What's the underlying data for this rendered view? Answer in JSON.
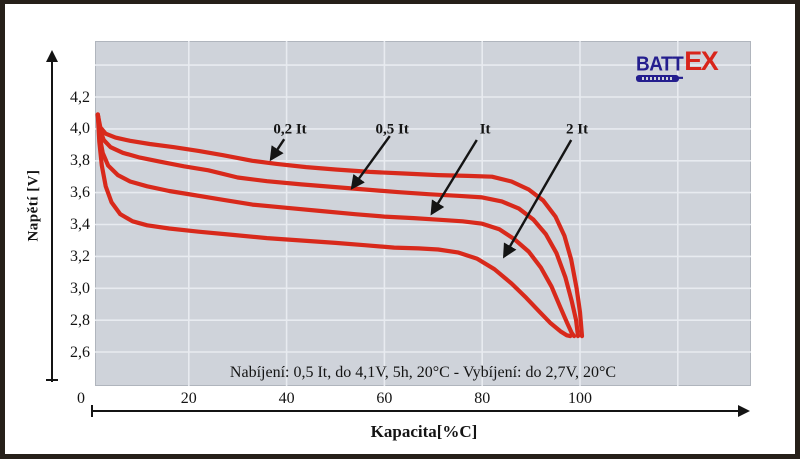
{
  "logo": {
    "part1": "BATT",
    "part2": "EX",
    "batt_color": "#241e8e",
    "ex_color": "#d8251b"
  },
  "annotation_text": "Nabíjení: 0,5 It, do 4,1V, 5h, 20°C - Vybíjení: do 2,7V, 20°C",
  "axes": {
    "y_title": "Napětí [V]",
    "x_title": "Kapacita[%C]",
    "y_ticks": [
      {
        "value": 4.2,
        "label": "4,2"
      },
      {
        "value": 4.0,
        "label": "4,0"
      },
      {
        "value": 3.8,
        "label": "3,8"
      },
      {
        "value": 3.6,
        "label": "3,6"
      },
      {
        "value": 3.4,
        "label": "3,4"
      },
      {
        "value": 3.2,
        "label": "3,2"
      },
      {
        "value": 3.0,
        "label": "3,0"
      },
      {
        "value": 2.8,
        "label": "2,8"
      },
      {
        "value": 2.6,
        "label": "2,6"
      }
    ],
    "x_ticks": [
      {
        "value": 0,
        "label": "0"
      },
      {
        "value": 20,
        "label": "20"
      },
      {
        "value": 40,
        "label": "40"
      },
      {
        "value": 60,
        "label": "60"
      },
      {
        "value": 80,
        "label": "80"
      },
      {
        "value": 100,
        "label": "100"
      }
    ]
  },
  "chart_data": {
    "type": "line",
    "title": "",
    "xlabel": "Kapacita[%C]",
    "ylabel": "Napětí [V]",
    "xlim": [
      0,
      134
    ],
    "ylim": [
      2.39,
      4.55
    ],
    "grid": true,
    "background": "#cfd3da",
    "gridline_color": "#e8ebf0",
    "curve_color": "#d8291b",
    "axis_color": "#141414",
    "x_gridlines": [
      20,
      40,
      60,
      80,
      100,
      120
    ],
    "y_gridlines": [
      4.4,
      4.2,
      4.0,
      3.8,
      3.6,
      3.4,
      3.2,
      3.0,
      2.8,
      2.6
    ],
    "series": [
      {
        "name": "0,2 It",
        "points": [
          [
            1.4,
            4.09
          ],
          [
            1.9,
            4.01
          ],
          [
            3,
            3.97
          ],
          [
            5,
            3.945
          ],
          [
            8,
            3.925
          ],
          [
            12,
            3.905
          ],
          [
            17,
            3.885
          ],
          [
            22,
            3.862
          ],
          [
            27,
            3.835
          ],
          [
            33,
            3.8
          ],
          [
            38,
            3.78
          ],
          [
            44,
            3.76
          ],
          [
            50,
            3.745
          ],
          [
            57,
            3.73
          ],
          [
            64,
            3.72
          ],
          [
            71,
            3.71
          ],
          [
            77,
            3.705
          ],
          [
            82,
            3.7
          ],
          [
            86,
            3.67
          ],
          [
            89.5,
            3.62
          ],
          [
            92.5,
            3.55
          ],
          [
            95,
            3.45
          ],
          [
            96.8,
            3.33
          ],
          [
            98.2,
            3.18
          ],
          [
            99.3,
            3.0
          ],
          [
            100,
            2.85
          ],
          [
            100.4,
            2.7
          ]
        ]
      },
      {
        "name": "0,5 It",
        "points": [
          [
            1.4,
            4.09
          ],
          [
            1.9,
            3.99
          ],
          [
            2.6,
            3.93
          ],
          [
            4,
            3.885
          ],
          [
            6.5,
            3.85
          ],
          [
            10,
            3.82
          ],
          [
            14,
            3.795
          ],
          [
            19,
            3.765
          ],
          [
            24,
            3.74
          ],
          [
            30,
            3.695
          ],
          [
            36,
            3.672
          ],
          [
            43,
            3.652
          ],
          [
            50,
            3.635
          ],
          [
            57,
            3.617
          ],
          [
            63,
            3.603
          ],
          [
            69,
            3.59
          ],
          [
            75,
            3.58
          ],
          [
            80,
            3.57
          ],
          [
            84,
            3.545
          ],
          [
            87.5,
            3.5
          ],
          [
            90.5,
            3.43
          ],
          [
            93,
            3.34
          ],
          [
            95.2,
            3.22
          ],
          [
            97,
            3.07
          ],
          [
            98.3,
            2.92
          ],
          [
            99.2,
            2.8
          ],
          [
            99.6,
            2.7
          ]
        ]
      },
      {
        "name": "It",
        "points": [
          [
            1.4,
            4.09
          ],
          [
            1.8,
            3.95
          ],
          [
            2.4,
            3.85
          ],
          [
            3.5,
            3.77
          ],
          [
            5.5,
            3.71
          ],
          [
            8,
            3.67
          ],
          [
            11.5,
            3.64
          ],
          [
            16,
            3.61
          ],
          [
            21,
            3.585
          ],
          [
            27,
            3.555
          ],
          [
            33,
            3.525
          ],
          [
            40,
            3.505
          ],
          [
            47,
            3.485
          ],
          [
            54,
            3.465
          ],
          [
            60,
            3.45
          ],
          [
            66,
            3.44
          ],
          [
            71,
            3.43
          ],
          [
            76,
            3.42
          ],
          [
            80,
            3.405
          ],
          [
            83.5,
            3.37
          ],
          [
            86.5,
            3.31
          ],
          [
            89.5,
            3.23
          ],
          [
            92,
            3.13
          ],
          [
            94.2,
            3.01
          ],
          [
            96,
            2.88
          ],
          [
            97.4,
            2.78
          ],
          [
            98.3,
            2.72
          ],
          [
            98.8,
            2.7
          ]
        ]
      },
      {
        "name": "2 It",
        "points": [
          [
            1.4,
            4.09
          ],
          [
            1.7,
            3.92
          ],
          [
            2.2,
            3.77
          ],
          [
            3,
            3.64
          ],
          [
            4.2,
            3.54
          ],
          [
            6,
            3.465
          ],
          [
            8.5,
            3.42
          ],
          [
            11.5,
            3.395
          ],
          [
            16,
            3.375
          ],
          [
            22,
            3.355
          ],
          [
            29,
            3.335
          ],
          [
            36,
            3.315
          ],
          [
            43,
            3.3
          ],
          [
            50,
            3.285
          ],
          [
            56,
            3.27
          ],
          [
            62,
            3.255
          ],
          [
            67,
            3.25
          ],
          [
            71,
            3.243
          ],
          [
            75,
            3.225
          ],
          [
            79,
            3.185
          ],
          [
            82.5,
            3.12
          ],
          [
            86,
            3.03
          ],
          [
            89,
            2.94
          ],
          [
            91.8,
            2.85
          ],
          [
            94,
            2.78
          ],
          [
            96,
            2.73
          ],
          [
            97.3,
            2.705
          ],
          [
            98,
            2.7
          ]
        ]
      }
    ],
    "annotations": [
      {
        "label": "0,2 It",
        "label_at": [
          40.7,
          3.99
        ],
        "arrow_from": [
          39.5,
          3.935
        ],
        "arrow_to": [
          36.8,
          3.81
        ]
      },
      {
        "label": "0,5 It",
        "label_at": [
          61.6,
          3.99
        ],
        "arrow_from": [
          61.1,
          3.955
        ],
        "arrow_to": [
          53.4,
          3.63
        ]
      },
      {
        "label": "It",
        "label_at": [
          80.6,
          3.99
        ],
        "arrow_from": [
          78.9,
          3.93
        ],
        "arrow_to": [
          69.7,
          3.47
        ]
      },
      {
        "label": "2 It",
        "label_at": [
          99.4,
          3.99
        ],
        "arrow_from": [
          98.2,
          3.93
        ],
        "arrow_to": [
          84.5,
          3.2
        ]
      }
    ]
  }
}
